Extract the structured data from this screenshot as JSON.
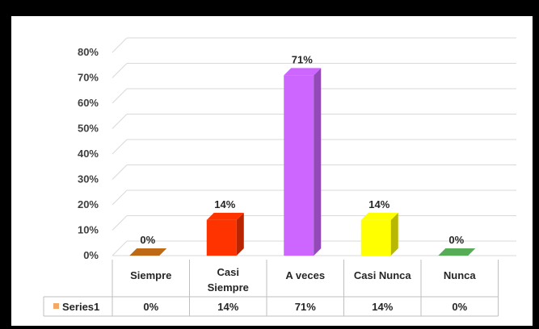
{
  "chart_data": {
    "type": "bar",
    "categories": [
      "Siempre",
      "Casi Siempre",
      "A veces",
      "Casi Nunca",
      "Nunca"
    ],
    "category_lines": [
      [
        "Siempre"
      ],
      [
        "Casi",
        "Siempre"
      ],
      [
        "A veces"
      ],
      [
        "Casi Nunca"
      ],
      [
        "Nunca"
      ]
    ],
    "series": [
      {
        "name": "Series1",
        "values": [
          0,
          14,
          71,
          14,
          0
        ],
        "labels": [
          "0%",
          "14%",
          "71%",
          "14%",
          "0%"
        ]
      }
    ],
    "bar_colors": [
      "#e07b1a",
      "#ff3300",
      "#cc66ff",
      "#ffff00",
      "#66cc66"
    ],
    "legend_swatch_color": "#f4a868",
    "yticks": [
      "0%",
      "10%",
      "20%",
      "30%",
      "40%",
      "50%",
      "60%",
      "70%",
      "80%"
    ],
    "ylim": [
      0,
      80
    ],
    "grid": true,
    "data_table": true,
    "style": "3d-column"
  }
}
